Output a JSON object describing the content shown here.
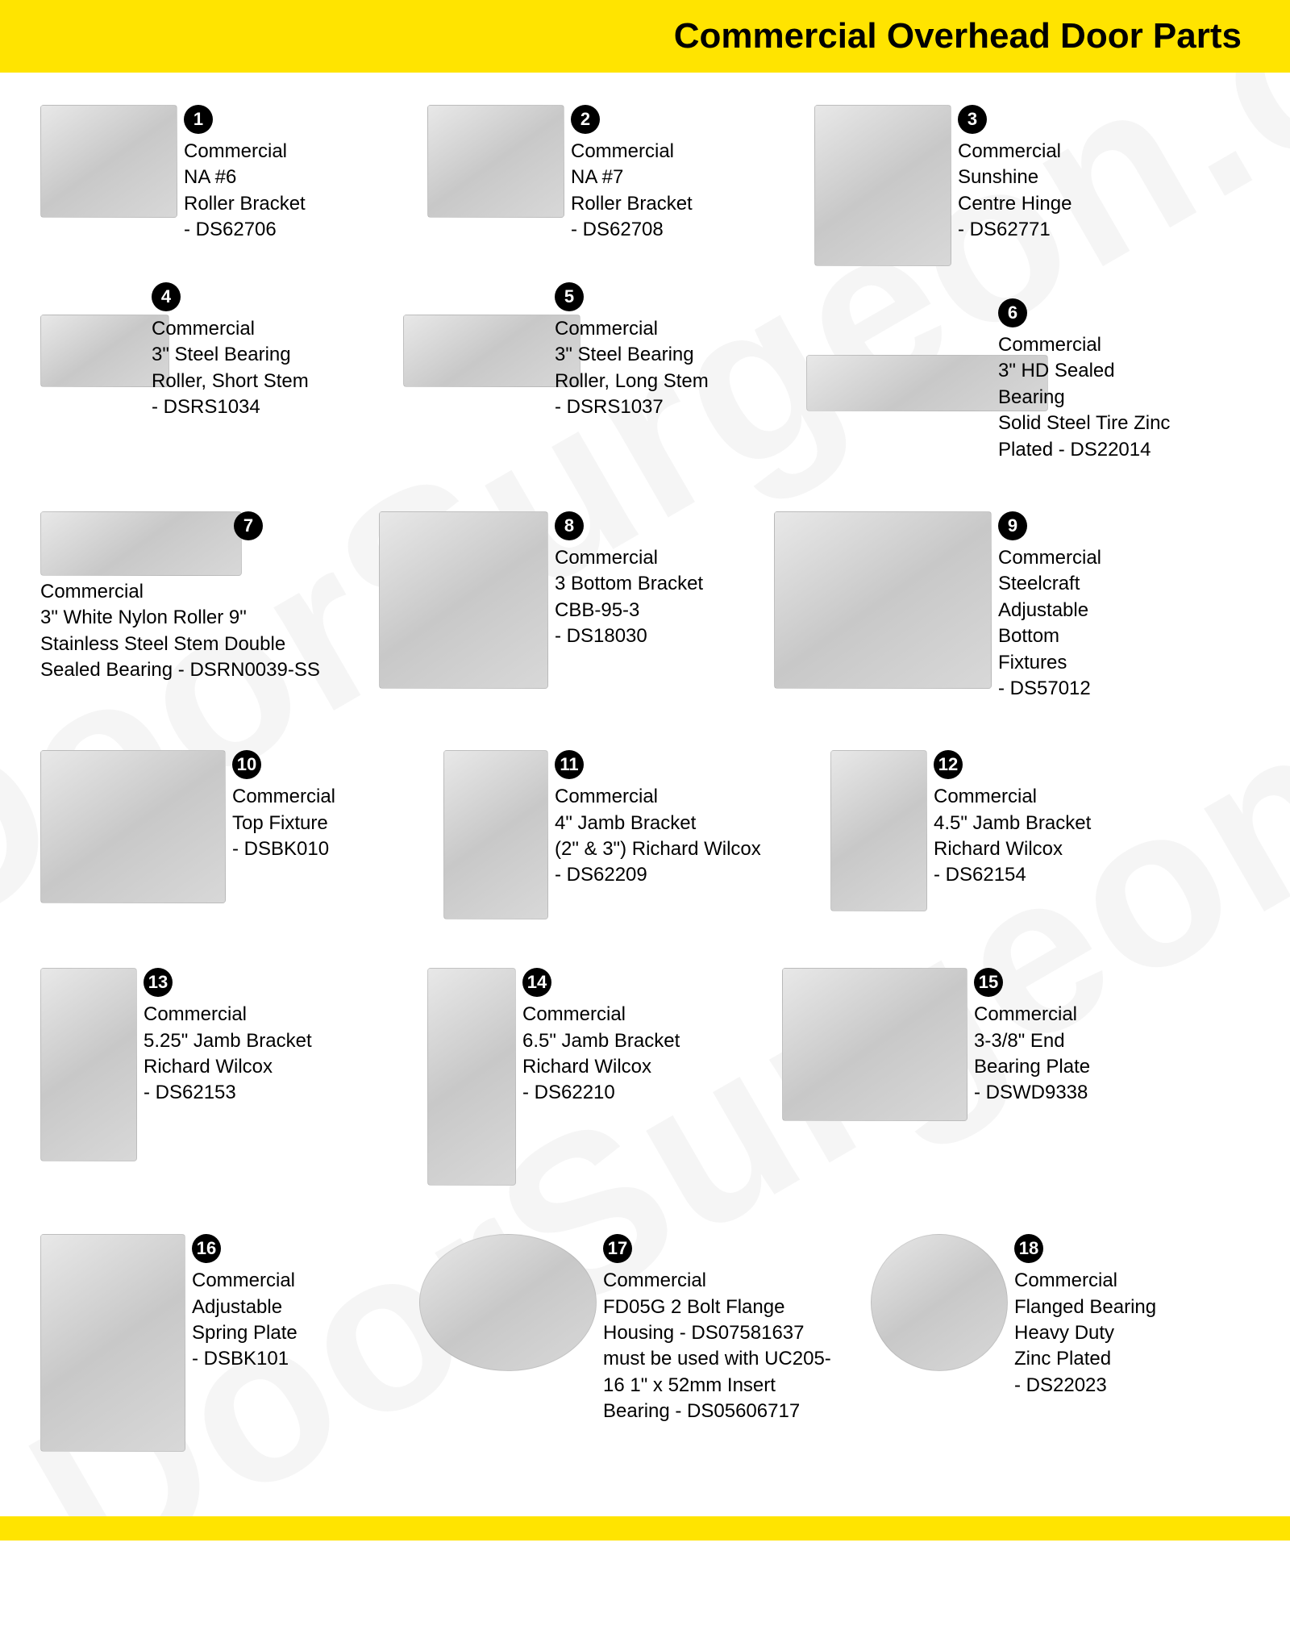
{
  "header": {
    "title": "Commercial Overhead Door Parts"
  },
  "watermark": "DoorSurgeon.com",
  "colors": {
    "header_bg": "#ffe400",
    "badge_bg": "#000000",
    "badge_fg": "#ffffff",
    "text": "#000000",
    "page_bg": "#ffffff"
  },
  "items": [
    {
      "num": "1",
      "desc": "Commercial\nNA #6\nRoller Bracket\n- DS62706"
    },
    {
      "num": "2",
      "desc": "Commercial\nNA #7\nRoller Bracket\n- DS62708"
    },
    {
      "num": "3",
      "desc": "Commercial\nSunshine\nCentre Hinge\n- DS62771"
    },
    {
      "num": "4",
      "desc": "Commercial\n3\" Steel Bearing\nRoller, Short Stem\n- DSRS1034"
    },
    {
      "num": "5",
      "desc": "Commercial\n3\" Steel Bearing\nRoller, Long Stem\n- DSRS1037"
    },
    {
      "num": "6",
      "desc": "Commercial\n3\" HD Sealed\nBearing\nSolid Steel Tire Zinc\nPlated - DS22014"
    },
    {
      "num": "7",
      "desc": "Commercial\n3\" White Nylon Roller 9\"\nStainless Steel Stem Double\nSealed Bearing - DSRN0039-SS"
    },
    {
      "num": "8",
      "desc": "Commercial\n3 Bottom Bracket\nCBB-95-3\n- DS18030"
    },
    {
      "num": "9",
      "desc": "Commercial\nSteelcraft\nAdjustable\nBottom\nFixtures\n- DS57012"
    },
    {
      "num": "10",
      "desc": "Commercial\nTop Fixture\n- DSBK010"
    },
    {
      "num": "11",
      "desc": "Commercial\n4\" Jamb Bracket\n(2\" & 3\") Richard Wilcox\n- DS62209"
    },
    {
      "num": "12",
      "desc": "Commercial\n4.5\" Jamb Bracket\nRichard Wilcox\n- DS62154"
    },
    {
      "num": "13",
      "desc": "Commercial\n5.25\" Jamb Bracket\nRichard Wilcox\n- DS62153"
    },
    {
      "num": "14",
      "desc": "Commercial\n6.5\" Jamb Bracket\nRichard Wilcox\n- DS62210"
    },
    {
      "num": "15",
      "desc": "Commercial\n3-3/8\" End\nBearing Plate\n- DSWD9338"
    },
    {
      "num": "16",
      "desc": "Commercial\nAdjustable\nSpring Plate\n- DSBK101"
    },
    {
      "num": "17",
      "desc": "Commercial\nFD05G 2 Bolt Flange\nHousing - DS07581637\nmust be used with UC205-\n16 1\" x 52mm Insert\nBearing - DS05606717"
    },
    {
      "num": "18",
      "desc": "Commercial\nFlanged Bearing\nHeavy Duty\nZinc Plated\n- DS22023"
    }
  ]
}
